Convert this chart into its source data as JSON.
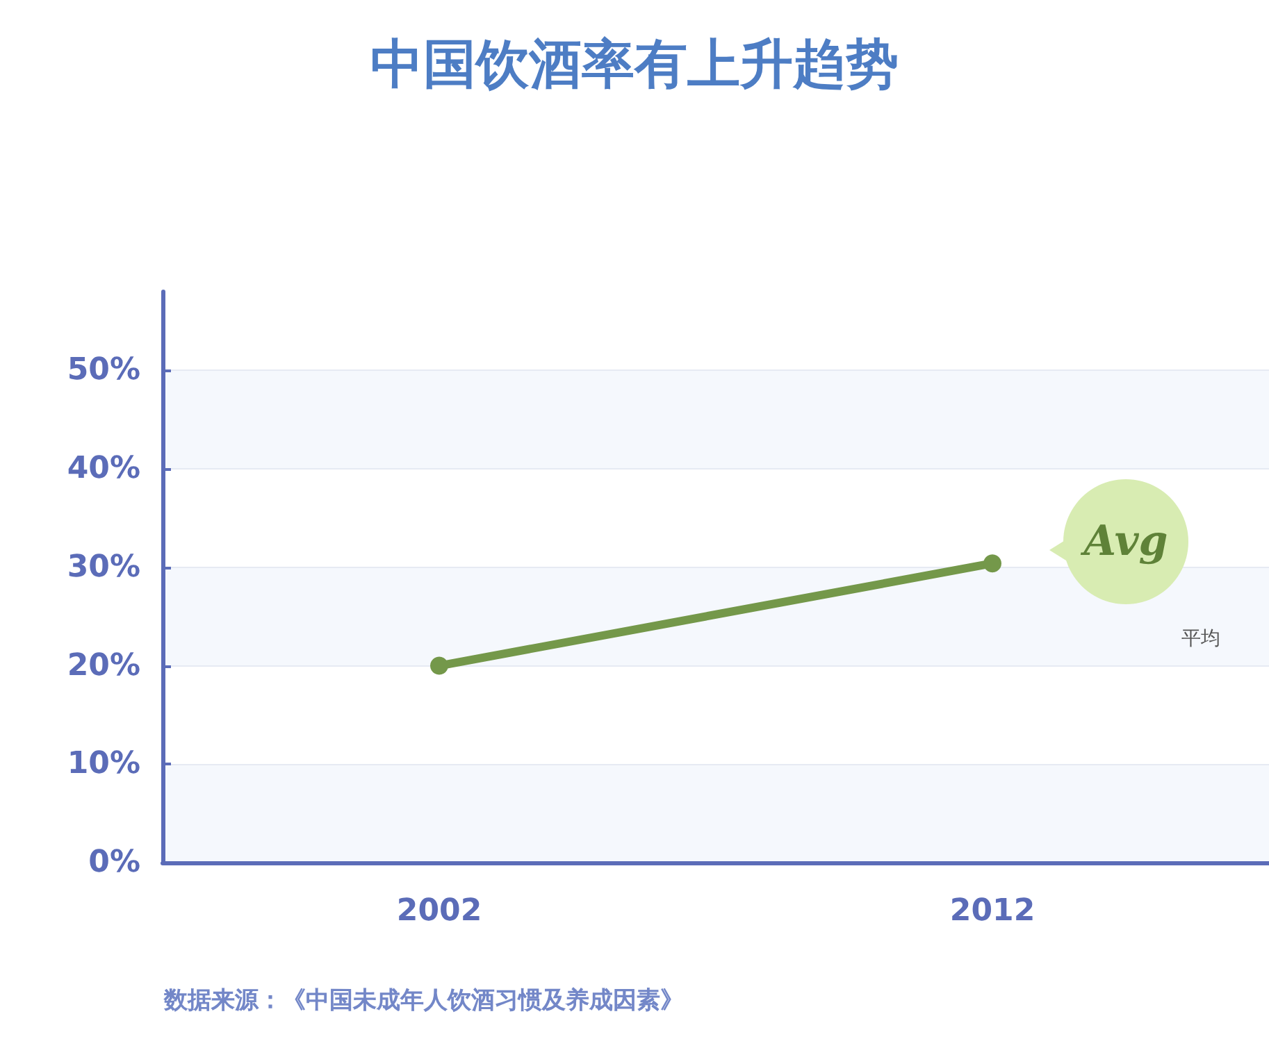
{
  "chart_data": {
    "type": "line",
    "title": "中国饮酒率有上升趋势",
    "categories": [
      "2002",
      "2012"
    ],
    "series": [
      {
        "name": "平均",
        "color": "#74984a",
        "values": [
          20,
          30.4
        ]
      }
    ],
    "ylim": [
      0,
      58
    ],
    "yticks": [
      {
        "value": 0,
        "label": "0%"
      },
      {
        "value": 10,
        "label": "10%"
      },
      {
        "value": 20,
        "label": "20%"
      },
      {
        "value": 30,
        "label": "30%"
      },
      {
        "value": 40,
        "label": "40%"
      },
      {
        "value": 50,
        "label": "50%"
      }
    ],
    "grid": "y",
    "legend": "right",
    "marker": "circle",
    "line_style": "solid",
    "annotations": [
      "Avg",
      "数据来源：《中国未成年人饮酒习惯及养成因素》"
    ]
  }
}
